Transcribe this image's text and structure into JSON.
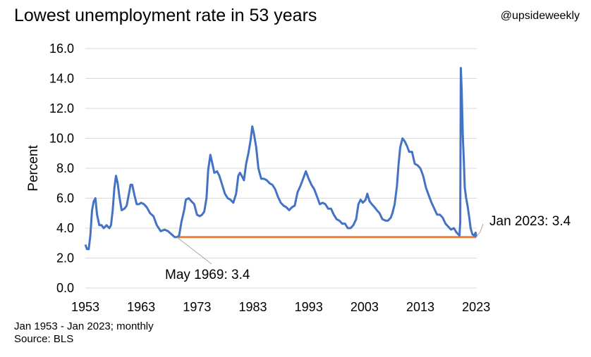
{
  "header": {
    "title": "Lowest unemployment rate in 53 years",
    "handle": "@upsideweekly"
  },
  "footer": {
    "range_note": "Jan 1953 - Jan 2023; monthly",
    "source": "Source: BLS"
  },
  "chart_data": {
    "type": "line",
    "title": "Lowest unemployment rate in 53 years",
    "xlabel": "",
    "ylabel": "Percent",
    "xlim": [
      1953.0,
      2023.1
    ],
    "ylim": [
      0,
      16
    ],
    "yticks": [
      "0.0",
      "2.0",
      "4.0",
      "6.0",
      "8.0",
      "10.0",
      "12.0",
      "14.0",
      "16.0"
    ],
    "xticks": [
      "1953",
      "1963",
      "1973",
      "1983",
      "1993",
      "2003",
      "2013",
      "2023"
    ],
    "grid": "horizontal",
    "colors": {
      "series": "#4472C4",
      "reference": "#ED7D31",
      "grid": "#D9D9D9",
      "leader": "#A6A6A6"
    },
    "series": [
      {
        "values": [
          [
            1953.0,
            2.9
          ],
          [
            1953.3,
            2.6
          ],
          [
            1953.6,
            2.6
          ],
          [
            1953.9,
            3.5
          ],
          [
            1954.2,
            5.2
          ],
          [
            1954.5,
            5.8
          ],
          [
            1954.8,
            6.0
          ],
          [
            1955.1,
            4.9
          ],
          [
            1955.5,
            4.2
          ],
          [
            1955.9,
            4.2
          ],
          [
            1956.3,
            4.0
          ],
          [
            1956.8,
            4.2
          ],
          [
            1957.3,
            4.0
          ],
          [
            1957.6,
            4.2
          ],
          [
            1957.9,
            5.2
          ],
          [
            1958.2,
            6.7
          ],
          [
            1958.5,
            7.5
          ],
          [
            1958.8,
            7.0
          ],
          [
            1959.1,
            6.1
          ],
          [
            1959.5,
            5.2
          ],
          [
            1960.0,
            5.3
          ],
          [
            1960.4,
            5.5
          ],
          [
            1960.8,
            6.3
          ],
          [
            1961.1,
            6.9
          ],
          [
            1961.4,
            6.9
          ],
          [
            1961.8,
            6.2
          ],
          [
            1962.2,
            5.6
          ],
          [
            1962.6,
            5.6
          ],
          [
            1963.0,
            5.7
          ],
          [
            1963.5,
            5.6
          ],
          [
            1964.0,
            5.4
          ],
          [
            1964.6,
            5.0
          ],
          [
            1965.2,
            4.8
          ],
          [
            1965.8,
            4.2
          ],
          [
            1966.5,
            3.8
          ],
          [
            1967.2,
            3.9
          ],
          [
            1967.8,
            3.8
          ],
          [
            1968.4,
            3.6
          ],
          [
            1969.0,
            3.4
          ],
          [
            1969.4,
            3.4
          ],
          [
            1969.8,
            3.5
          ],
          [
            1970.2,
            4.4
          ],
          [
            1970.7,
            5.2
          ],
          [
            1971.0,
            5.9
          ],
          [
            1971.5,
            6.0
          ],
          [
            1972.0,
            5.8
          ],
          [
            1972.5,
            5.6
          ],
          [
            1973.0,
            4.9
          ],
          [
            1973.5,
            4.8
          ],
          [
            1973.9,
            4.9
          ],
          [
            1974.3,
            5.1
          ],
          [
            1974.7,
            6.0
          ],
          [
            1975.0,
            7.9
          ],
          [
            1975.4,
            8.9
          ],
          [
            1975.7,
            8.4
          ],
          [
            1976.1,
            7.7
          ],
          [
            1976.6,
            7.8
          ],
          [
            1977.0,
            7.5
          ],
          [
            1977.5,
            6.9
          ],
          [
            1978.0,
            6.3
          ],
          [
            1978.5,
            6.0
          ],
          [
            1979.0,
            5.9
          ],
          [
            1979.5,
            5.7
          ],
          [
            1980.0,
            6.3
          ],
          [
            1980.4,
            7.5
          ],
          [
            1980.7,
            7.7
          ],
          [
            1981.0,
            7.5
          ],
          [
            1981.4,
            7.2
          ],
          [
            1981.8,
            8.3
          ],
          [
            1982.2,
            9.0
          ],
          [
            1982.6,
            9.9
          ],
          [
            1982.9,
            10.8
          ],
          [
            1983.2,
            10.3
          ],
          [
            1983.6,
            9.4
          ],
          [
            1984.0,
            8.0
          ],
          [
            1984.5,
            7.3
          ],
          [
            1985.0,
            7.3
          ],
          [
            1985.5,
            7.2
          ],
          [
            1986.0,
            7.0
          ],
          [
            1986.5,
            6.9
          ],
          [
            1987.0,
            6.6
          ],
          [
            1987.5,
            6.1
          ],
          [
            1988.0,
            5.7
          ],
          [
            1988.5,
            5.5
          ],
          [
            1989.0,
            5.4
          ],
          [
            1989.5,
            5.2
          ],
          [
            1990.0,
            5.4
          ],
          [
            1990.5,
            5.5
          ],
          [
            1991.0,
            6.4
          ],
          [
            1991.5,
            6.8
          ],
          [
            1992.0,
            7.3
          ],
          [
            1992.5,
            7.8
          ],
          [
            1993.0,
            7.3
          ],
          [
            1993.5,
            6.9
          ],
          [
            1994.0,
            6.6
          ],
          [
            1994.5,
            6.1
          ],
          [
            1995.0,
            5.6
          ],
          [
            1995.5,
            5.7
          ],
          [
            1996.0,
            5.6
          ],
          [
            1996.5,
            5.3
          ],
          [
            1997.0,
            5.3
          ],
          [
            1997.5,
            4.9
          ],
          [
            1998.0,
            4.6
          ],
          [
            1998.5,
            4.5
          ],
          [
            1999.0,
            4.3
          ],
          [
            1999.5,
            4.3
          ],
          [
            2000.0,
            4.0
          ],
          [
            2000.5,
            4.0
          ],
          [
            2001.0,
            4.2
          ],
          [
            2001.5,
            4.6
          ],
          [
            2001.9,
            5.6
          ],
          [
            2002.3,
            5.9
          ],
          [
            2002.7,
            5.7
          ],
          [
            2003.2,
            5.9
          ],
          [
            2003.5,
            6.3
          ],
          [
            2003.9,
            5.8
          ],
          [
            2004.3,
            5.6
          ],
          [
            2004.8,
            5.4
          ],
          [
            2005.2,
            5.2
          ],
          [
            2005.7,
            5.0
          ],
          [
            2006.2,
            4.6
          ],
          [
            2006.8,
            4.5
          ],
          [
            2007.2,
            4.5
          ],
          [
            2007.7,
            4.7
          ],
          [
            2008.0,
            5.0
          ],
          [
            2008.4,
            5.6
          ],
          [
            2008.8,
            6.8
          ],
          [
            2009.1,
            8.3
          ],
          [
            2009.4,
            9.4
          ],
          [
            2009.8,
            10.0
          ],
          [
            2010.2,
            9.8
          ],
          [
            2010.6,
            9.5
          ],
          [
            2011.0,
            9.1
          ],
          [
            2011.5,
            9.1
          ],
          [
            2012.0,
            8.3
          ],
          [
            2012.5,
            8.2
          ],
          [
            2013.0,
            8.0
          ],
          [
            2013.5,
            7.5
          ],
          [
            2014.0,
            6.7
          ],
          [
            2014.5,
            6.2
          ],
          [
            2015.0,
            5.7
          ],
          [
            2015.5,
            5.3
          ],
          [
            2016.0,
            4.9
          ],
          [
            2016.5,
            4.9
          ],
          [
            2017.0,
            4.7
          ],
          [
            2017.5,
            4.3
          ],
          [
            2018.0,
            4.1
          ],
          [
            2018.5,
            3.9
          ],
          [
            2019.0,
            4.0
          ],
          [
            2019.5,
            3.7
          ],
          [
            2020.0,
            3.5
          ],
          [
            2020.15,
            4.4
          ],
          [
            2020.25,
            14.7
          ],
          [
            2020.4,
            13.3
          ],
          [
            2020.6,
            10.2
          ],
          [
            2020.8,
            8.4
          ],
          [
            2020.95,
            6.7
          ],
          [
            2021.2,
            6.0
          ],
          [
            2021.5,
            5.4
          ],
          [
            2021.8,
            4.6
          ],
          [
            2022.0,
            4.0
          ],
          [
            2022.3,
            3.6
          ],
          [
            2022.6,
            3.5
          ],
          [
            2022.9,
            3.7
          ],
          [
            2023.0,
            3.4
          ]
        ]
      }
    ],
    "reference_line": {
      "y": 3.4,
      "from": 1969.4,
      "to": 2023.0
    },
    "annotations": [
      {
        "text": "May 1969: 3.4",
        "x": 1969.4,
        "y": 3.4
      },
      {
        "text": "Jan 2023: 3.4",
        "x": 2023.0,
        "y": 3.4
      }
    ]
  }
}
